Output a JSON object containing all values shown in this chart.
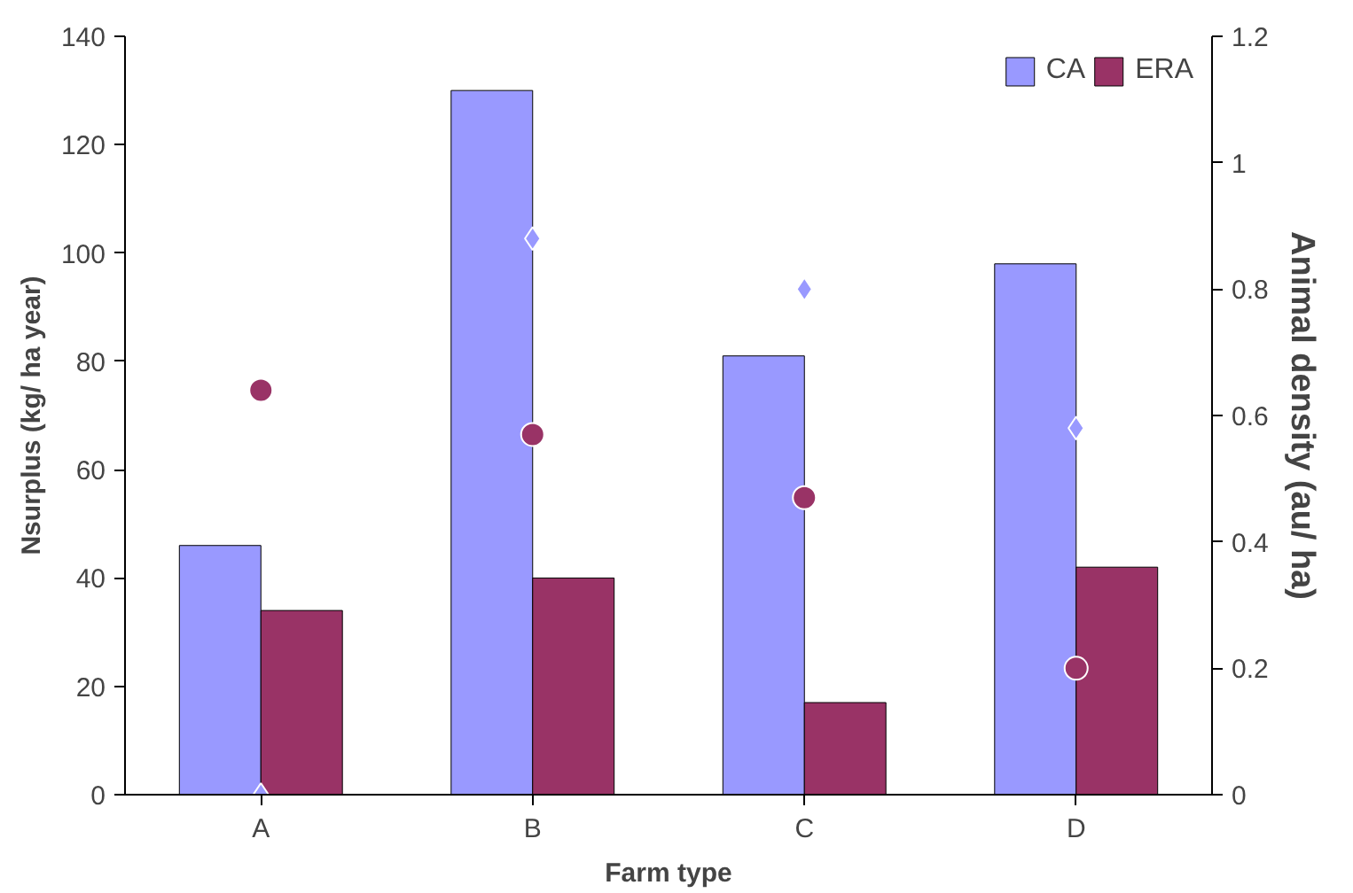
{
  "chart_data": {
    "type": "bar",
    "xlabel": "Farm type",
    "ylabel": "Nsurplus (kg/ ha year)",
    "y2label": "Animal density (au/ ha)",
    "categories": [
      "A",
      "B",
      "C",
      "D"
    ],
    "series": [
      {
        "name": "CA",
        "color": "#9999ff",
        "values": [
          46,
          130,
          81,
          98
        ]
      },
      {
        "name": "ERA",
        "color": "#993366",
        "values": [
          34,
          40,
          17,
          42
        ]
      },
      {
        "type": "scatter",
        "marker": "diamond",
        "axis": "y2",
        "color": "#9999ff",
        "x": [
          "A",
          "B",
          "C",
          "D"
        ],
        "values": [
          0,
          0.88,
          0.8,
          0.58
        ]
      },
      {
        "type": "scatter",
        "marker": "circle",
        "axis": "y2",
        "color": "#993366",
        "x": [
          "A",
          "B",
          "C",
          "D"
        ],
        "values": [
          0.64,
          0.57,
          0.47,
          0.2
        ]
      }
    ],
    "ylim": [
      0,
      140
    ],
    "yticks": [
      0,
      20,
      40,
      60,
      80,
      100,
      120,
      140
    ],
    "y2lim": [
      0,
      1.2
    ],
    "y2ticks": [
      0,
      {
        "value": 0.2,
        "label": "0.2"
      },
      {
        "value": 0.4,
        "label": "0.4"
      },
      {
        "value": 0.6,
        "label": "0.6"
      },
      {
        "value": 0.8,
        "label": "0.8"
      },
      1,
      {
        "value": 1.2,
        "label": "1.2"
      }
    ],
    "legend": "top right",
    "grid": false
  }
}
